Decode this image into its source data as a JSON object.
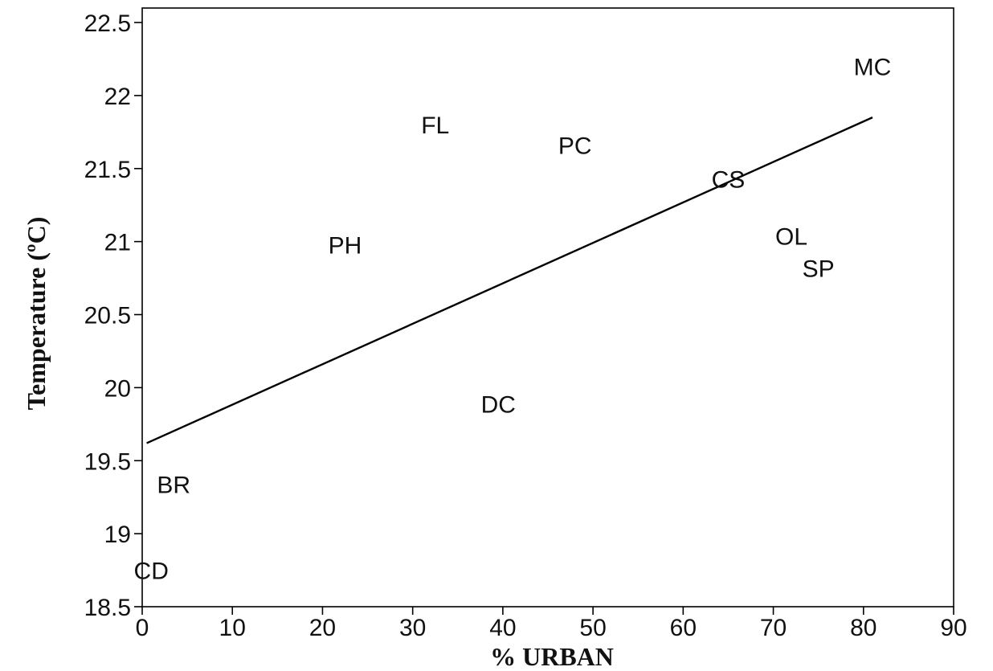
{
  "chart_data": {
    "type": "scatter",
    "title": "",
    "xlabel": "% URBAN",
    "ylabel": "Temperature (ºC)",
    "xlim": [
      0,
      90
    ],
    "ylim": [
      18.5,
      22.5
    ],
    "x_ticks": [
      0,
      10,
      20,
      30,
      40,
      50,
      60,
      70,
      80,
      90
    ],
    "y_ticks": [
      18.5,
      19,
      19.5,
      20,
      20.5,
      21,
      21.5,
      22,
      22.5
    ],
    "x_tick_labels": [
      "0",
      "10",
      "20",
      "30",
      "40",
      "50",
      "60",
      "70",
      "80",
      "90"
    ],
    "y_tick_labels": [
      "18.5",
      "19",
      "19.5",
      "20",
      "20.5",
      "21",
      "21.5",
      "22",
      "22.5"
    ],
    "grid": false,
    "points": [
      {
        "label": "MC",
        "x": 81,
        "y": 22.2
      },
      {
        "label": "FL",
        "x": 32.5,
        "y": 21.8
      },
      {
        "label": "PC",
        "x": 48,
        "y": 21.66
      },
      {
        "label": "CS",
        "x": 65,
        "y": 21.43
      },
      {
        "label": "OL",
        "x": 72,
        "y": 21.04
      },
      {
        "label": "SP",
        "x": 75,
        "y": 20.82
      },
      {
        "label": "PH",
        "x": 22.5,
        "y": 20.98
      },
      {
        "label": "DC",
        "x": 39.5,
        "y": 19.89
      },
      {
        "label": "BR",
        "x": 3.5,
        "y": 19.34
      },
      {
        "label": "CD",
        "x": 1,
        "y": 18.75
      }
    ],
    "trendline": {
      "x": [
        0.5,
        81
      ],
      "y": [
        19.62,
        21.85
      ]
    }
  }
}
